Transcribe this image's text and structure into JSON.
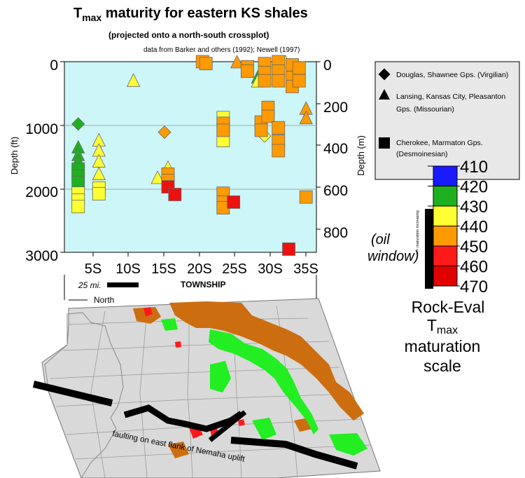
{
  "title": {
    "prefix": "T",
    "sub": "max",
    "rest": " maturity for eastern KS shales",
    "subtitle": "(projected onto a north-south crossplot)",
    "source": "data from Barker and others (1992); Newell (1997)"
  },
  "axes": {
    "ylabel_left": "Depth (ft)",
    "ylabel_right": "Depth (m)",
    "xlabel": "TOWNSHIP",
    "scale_bar_label": "25 mi.",
    "left_ticks": [
      "0",
      "1000",
      "2000",
      "3000"
    ],
    "right_ticks": [
      "0",
      "200",
      "400",
      "600",
      "800"
    ],
    "x_ticks": [
      "5S",
      "10S",
      "15S",
      "20S",
      "25S",
      "30S",
      "35S"
    ]
  },
  "legend": {
    "items": [
      {
        "label": "Douglas, Shawnee Gps. (Virgilian)",
        "shape": "diamond"
      },
      {
        "label": "Lansing, Kansas City, Pleasanton Gps. (Missourian)",
        "shape": "triangle"
      },
      {
        "label": "Cherokee, Marmaton Gps. (Desmoinesian)",
        "shape": "square"
      }
    ]
  },
  "colorscale": {
    "bands": [
      {
        "from": 410,
        "to": 420,
        "color": "#1a1aff"
      },
      {
        "from": 420,
        "to": 430,
        "color": "#1fb01f"
      },
      {
        "from": 430,
        "to": 440,
        "color": "#ffff33"
      },
      {
        "from": 440,
        "to": 450,
        "color": "#ff9a00"
      },
      {
        "from": 450,
        "to": 460,
        "color": "#ff1a1a"
      },
      {
        "from": 460,
        "to": 470,
        "color": "#e00000"
      }
    ],
    "labels": [
      "410",
      "420",
      "430",
      "440",
      "450",
      "460",
      "470"
    ],
    "arrow_text": "<<< maturation increasing",
    "oil_window_line1": "(oil",
    "oil_window_line2": "window)",
    "title_line1": "Rock-Eval",
    "title_line2_prefix": "T",
    "title_line2_sub": "max",
    "title_line3": "maturation",
    "title_line4": "scale"
  },
  "map": {
    "north_label": "North",
    "fault_label": "faulting on east flank of Nemaha uplift",
    "colors": {
      "land": "#d9d9d9",
      "green": "#22ee22",
      "orange": "#cc6e10",
      "red": "#ff1a1a",
      "fault": "#000000"
    }
  },
  "colors": {
    "plot_bg": "#ccf6f8",
    "grid": "#a8a8a8"
  },
  "chart_data": {
    "type": "scatter",
    "title": "Tmax maturity for eastern KS shales",
    "xlabel": "TOWNSHIP",
    "ylabel": "Depth (ft)",
    "y2label": "Depth (m)",
    "xlim": [
      0,
      36.5
    ],
    "ylim": [
      3000,
      0
    ],
    "x_ticks": [
      5,
      10,
      15,
      20,
      25,
      30,
      35
    ],
    "grid": "horizontal lines at 1000 and 2000 ft",
    "legend_position": "right",
    "series": [
      {
        "name": "Douglas, Shawnee Gps. (Virgilian)",
        "shape": "diamond",
        "points": [
          [
            2,
            980,
            "green"
          ],
          [
            14.5,
            1110,
            "orange"
          ],
          [
            29,
            1170,
            "yellow"
          ]
        ]
      },
      {
        "name": "Lansing, Kansas City, Pleasanton Gps. (Missourian)",
        "shape": "triangle",
        "points": [
          [
            2,
            1340,
            "green"
          ],
          [
            2,
            1460,
            "green"
          ],
          [
            2,
            1560,
            "green"
          ],
          [
            5,
            1230,
            "yellow"
          ],
          [
            5,
            1390,
            "yellow"
          ],
          [
            5,
            1560,
            "yellow"
          ],
          [
            5,
            1760,
            "yellow"
          ],
          [
            10,
            290,
            "yellow"
          ],
          [
            13.5,
            1820,
            "yellow"
          ],
          [
            15,
            1660,
            "yellow"
          ],
          [
            15,
            1820,
            "yellow"
          ],
          [
            25,
            0,
            "orange"
          ],
          [
            28,
            240,
            "green"
          ],
          [
            28,
            300,
            "yellow"
          ],
          [
            32,
            0,
            "yellow"
          ],
          [
            35,
            730,
            "orange"
          ],
          [
            35,
            880,
            "orange"
          ]
        ]
      },
      {
        "name": "Cherokee, Marmaton Gps. (Desmoinesian)",
        "shape": "square",
        "points": [
          [
            2,
            1690,
            "green"
          ],
          [
            2,
            1800,
            "green"
          ],
          [
            2,
            1900,
            "green"
          ],
          [
            2,
            2070,
            "yellow"
          ],
          [
            2,
            2180,
            "yellow"
          ],
          [
            2,
            2280,
            "yellow"
          ],
          [
            5,
            1990,
            "yellow"
          ],
          [
            5,
            2080,
            "yellow"
          ],
          [
            15,
            1770,
            "orange"
          ],
          [
            15,
            1870,
            "orange"
          ],
          [
            15,
            1970,
            "red"
          ],
          [
            16,
            2090,
            "red"
          ],
          [
            20,
            0,
            "orange"
          ],
          [
            20.5,
            30,
            "orange"
          ],
          [
            26.5,
            80,
            "orange"
          ],
          [
            26.5,
            150,
            "orange"
          ],
          [
            23,
            880,
            "yellow"
          ],
          [
            23,
            1060,
            "yellow"
          ],
          [
            23,
            1240,
            "yellow"
          ],
          [
            23,
            970,
            "orange"
          ],
          [
            23,
            1080,
            "orange"
          ],
          [
            23,
            2070,
            "orange"
          ],
          [
            23,
            2210,
            "orange"
          ],
          [
            23,
            2300,
            "orange"
          ],
          [
            24.5,
            2210,
            "red"
          ],
          [
            29,
            30,
            "orange"
          ],
          [
            29,
            170,
            "orange"
          ],
          [
            29,
            300,
            "orange"
          ],
          [
            31,
            0,
            "orange"
          ],
          [
            31,
            150,
            "orange"
          ],
          [
            31,
            300,
            "orange"
          ],
          [
            33,
            50,
            "orange"
          ],
          [
            33,
            250,
            "orange"
          ],
          [
            33,
            390,
            "orange"
          ],
          [
            34,
            100,
            "orange"
          ],
          [
            34,
            300,
            "orange"
          ],
          [
            28.5,
            950,
            "orange"
          ],
          [
            28.5,
            1080,
            "orange"
          ],
          [
            29.5,
            720,
            "orange"
          ],
          [
            29.5,
            860,
            "orange"
          ],
          [
            31,
            1040,
            "orange"
          ],
          [
            31,
            1250,
            "orange"
          ],
          [
            31,
            1400,
            "orange"
          ],
          [
            35,
            2130,
            "orange"
          ],
          [
            32.5,
            2950,
            "red"
          ]
        ]
      }
    ],
    "color_categories": {
      "green": "420-430",
      "yellow": "430-440",
      "orange": "440-450",
      "red": "450-470"
    }
  }
}
